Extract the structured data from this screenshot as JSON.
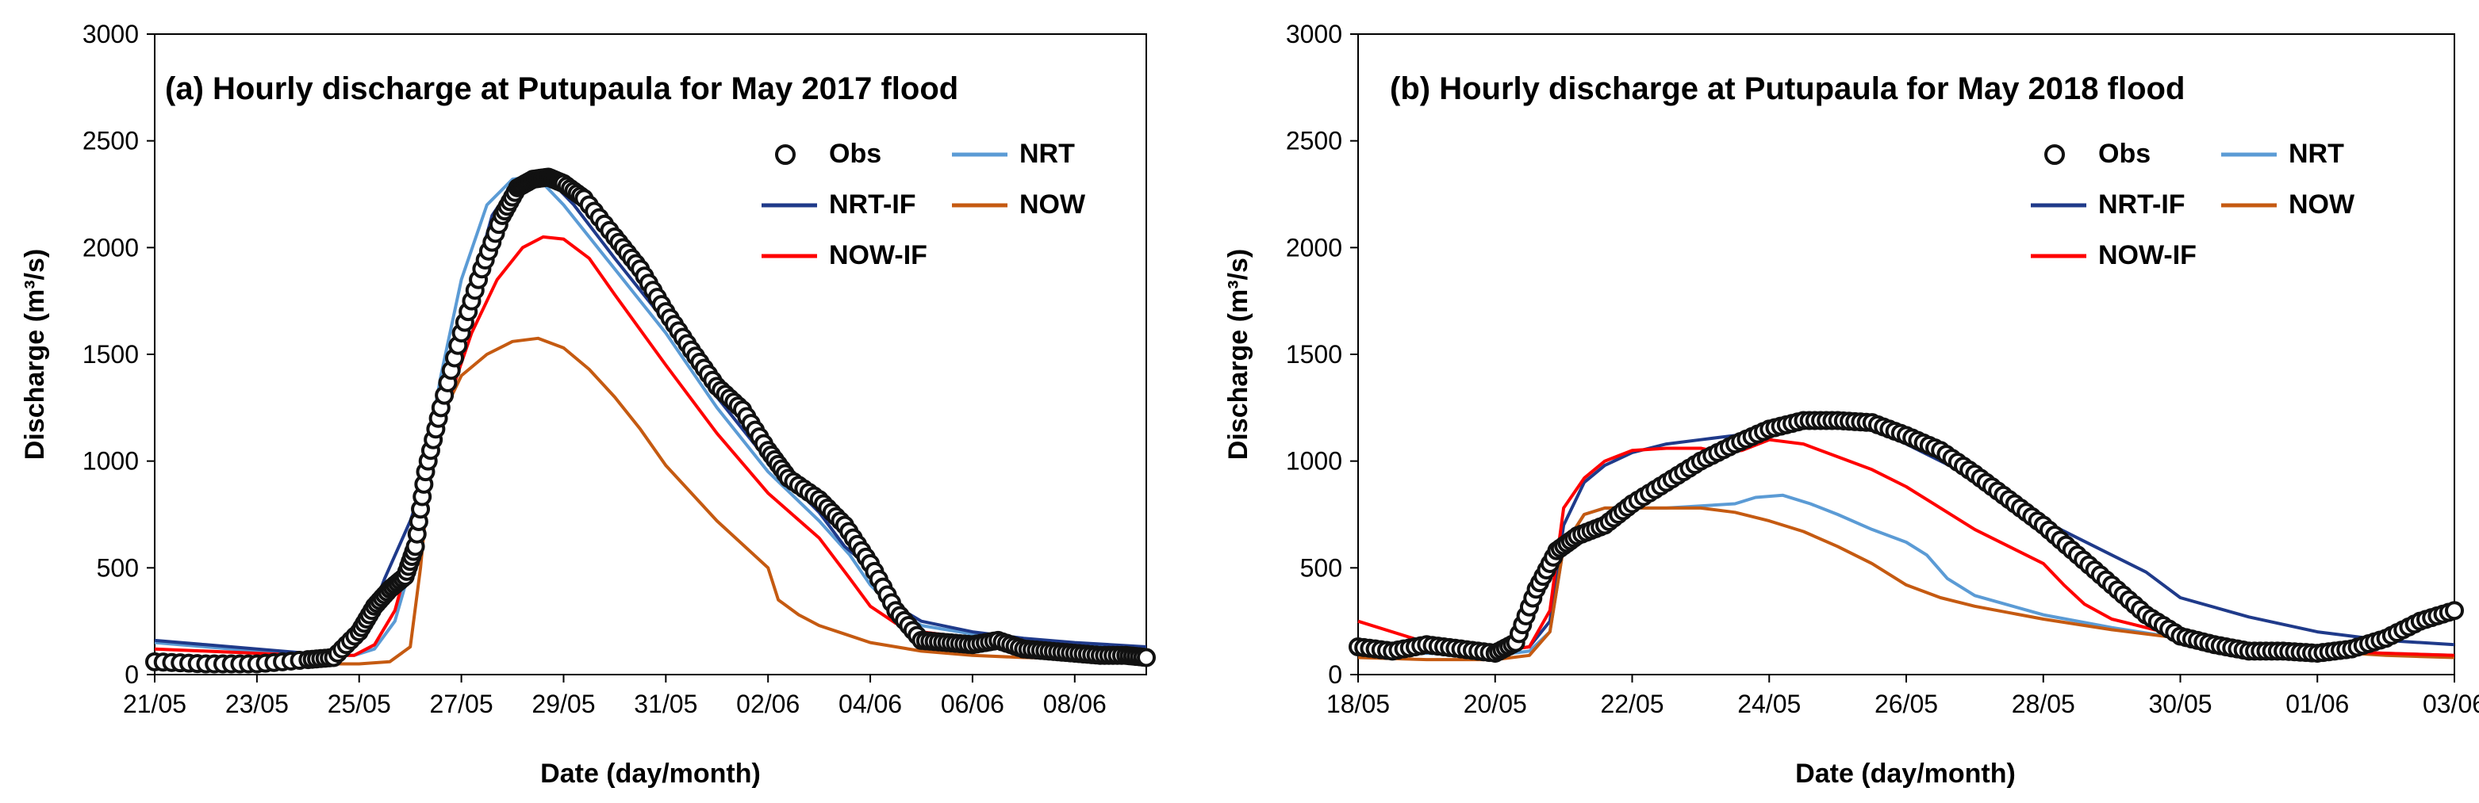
{
  "chart_data": [
    {
      "type": "line",
      "title": "(a) Hourly discharge at Putupaula for May 2017 flood",
      "xlabel": "Date (day/month)",
      "ylabel": "Discharge (m³/s)",
      "ylim": [
        0,
        3000
      ],
      "yticks": [
        "0",
        "500",
        "1000",
        "1500",
        "2000",
        "2500",
        "3000"
      ],
      "xlim": [
        0,
        19.4
      ],
      "xticks": [
        {
          "x": 0,
          "label": "21/05"
        },
        {
          "x": 2,
          "label": "23/05"
        },
        {
          "x": 4,
          "label": "25/05"
        },
        {
          "x": 6,
          "label": "27/05"
        },
        {
          "x": 8,
          "label": "29/05"
        },
        {
          "x": 10,
          "label": "31/05"
        },
        {
          "x": 12,
          "label": "02/06"
        },
        {
          "x": 14,
          "label": "04/06"
        },
        {
          "x": 16,
          "label": "06/06"
        },
        {
          "x": 18,
          "label": "08/06"
        }
      ],
      "legend": {
        "placement": "top-right",
        "entries": [
          {
            "name": "Obs",
            "kind": "marker"
          },
          {
            "name": "NRT",
            "color": "#5b9bd5"
          },
          {
            "name": "NRT-IF",
            "color": "#1f3a8a"
          },
          {
            "name": "NOW",
            "color": "#c55a11"
          },
          {
            "name": "NOW-IF",
            "color": "#ff0000"
          }
        ]
      },
      "series": [
        {
          "name": "NRT",
          "color": "#5b9bd5",
          "x": [
            0,
            1,
            2,
            3,
            3.9,
            4.3,
            4.7,
            5.0,
            5.3,
            5.6,
            6.0,
            6.5,
            7.0,
            7.3,
            7.6,
            8.0,
            8.5,
            9,
            10,
            11,
            12,
            13,
            13.6,
            14,
            14.5,
            15,
            16,
            17,
            18,
            19.4
          ],
          "y": [
            150,
            130,
            110,
            90,
            90,
            120,
            250,
            500,
            1000,
            1400,
            1850,
            2200,
            2320,
            2330,
            2300,
            2200,
            2050,
            1900,
            1600,
            1250,
            950,
            720,
            560,
            420,
            300,
            230,
            190,
            160,
            140,
            120
          ]
        },
        {
          "name": "NRT-IF",
          "color": "#1f3a8a",
          "x": [
            0,
            1,
            2,
            3,
            3.8,
            4.1,
            4.5,
            5.0,
            5.4,
            5.8,
            6.2,
            6.6,
            7.0,
            7.4,
            7.8,
            8.2,
            9,
            10,
            11,
            12,
            13,
            13.5,
            14,
            14.5,
            15,
            16,
            17,
            18,
            19.4
          ],
          "y": [
            160,
            140,
            120,
            100,
            110,
            200,
            450,
            720,
            1000,
            1400,
            1800,
            2150,
            2290,
            2320,
            2300,
            2200,
            1950,
            1650,
            1300,
            1000,
            760,
            600,
            500,
            320,
            250,
            200,
            170,
            150,
            130
          ]
        },
        {
          "name": "NOW",
          "color": "#c55a11",
          "x": [
            0,
            1,
            2,
            3,
            4,
            4.6,
            5.0,
            5.2,
            5.4,
            5.6,
            5.8,
            6.0,
            6.5,
            7.0,
            7.5,
            8.0,
            8.5,
            9,
            9.5,
            10,
            11,
            12,
            12.2,
            12.6,
            13,
            13.5,
            14,
            15,
            16,
            17,
            18,
            19.4
          ],
          "y": [
            80,
            70,
            60,
            50,
            50,
            60,
            130,
            500,
            1000,
            1200,
            1300,
            1400,
            1500,
            1560,
            1575,
            1530,
            1430,
            1300,
            1150,
            980,
            720,
            500,
            350,
            280,
            230,
            190,
            150,
            110,
            90,
            80,
            75,
            70
          ]
        },
        {
          "name": "NOW-IF",
          "color": "#ff0000",
          "x": [
            0,
            1,
            2,
            3,
            3.9,
            4.3,
            4.7,
            5.0,
            5.3,
            5.7,
            6.2,
            6.7,
            7.2,
            7.6,
            8.0,
            8.5,
            9,
            10,
            11,
            12,
            13,
            13.6,
            14,
            14.5,
            15,
            16,
            17,
            18,
            19.4
          ],
          "y": [
            120,
            110,
            100,
            90,
            90,
            140,
            300,
            560,
            900,
            1250,
            1600,
            1850,
            2000,
            2050,
            2040,
            1950,
            1780,
            1450,
            1130,
            850,
            640,
            450,
            320,
            240,
            200,
            170,
            150,
            130,
            110
          ]
        },
        {
          "name": "Obs",
          "kind": "scatter",
          "x": [
            0,
            1,
            2,
            3,
            3.5,
            4.0,
            4.3,
            4.6,
            4.9,
            5.1,
            5.3,
            5.6,
            6.0,
            6.4,
            6.8,
            7.1,
            7.4,
            7.7,
            8.0,
            8.4,
            9,
            9.5,
            10,
            10.5,
            11,
            11.5,
            12,
            12.4,
            13,
            13.5,
            14,
            14.5,
            15,
            15.5,
            16,
            16.5,
            17,
            17.5,
            18,
            18.5,
            19,
            19.4
          ],
          "y": [
            60,
            50,
            50,
            70,
            80,
            200,
            320,
            400,
            460,
            600,
            950,
            1250,
            1600,
            1900,
            2150,
            2280,
            2320,
            2330,
            2300,
            2230,
            2050,
            1900,
            1700,
            1520,
            1350,
            1240,
            1050,
            920,
            820,
            700,
            520,
            300,
            160,
            150,
            140,
            160,
            120,
            110,
            100,
            90,
            90,
            80
          ]
        }
      ]
    },
    {
      "type": "line",
      "title": "(b) Hourly discharge at Putupaula for May 2018 flood",
      "xlabel": "Date (day/month)",
      "ylabel": "Discharge (m³/s)",
      "ylim": [
        0,
        3000
      ],
      "yticks": [
        "0",
        "500",
        "1000",
        "1500",
        "2000",
        "2500",
        "3000"
      ],
      "xlim": [
        0,
        16
      ],
      "xticks": [
        {
          "x": 0,
          "label": "18/05"
        },
        {
          "x": 2,
          "label": "20/05"
        },
        {
          "x": 4,
          "label": "22/05"
        },
        {
          "x": 6,
          "label": "24/05"
        },
        {
          "x": 8,
          "label": "26/05"
        },
        {
          "x": 10,
          "label": "28/05"
        },
        {
          "x": 12,
          "label": "30/05"
        },
        {
          "x": 14,
          "label": "01/06"
        },
        {
          "x": 16,
          "label": "03/06"
        }
      ],
      "legend": {
        "placement": "top-right",
        "entries": [
          {
            "name": "Obs",
            "kind": "marker"
          },
          {
            "name": "NRT",
            "color": "#5b9bd5"
          },
          {
            "name": "NRT-IF",
            "color": "#1f3a8a"
          },
          {
            "name": "NOW",
            "color": "#c55a11"
          },
          {
            "name": "NOW-IF",
            "color": "#ff0000"
          }
        ]
      },
      "series": [
        {
          "name": "NRT",
          "color": "#5b9bd5",
          "x": [
            0,
            1,
            2,
            2.5,
            2.8,
            3.0,
            3.3,
            3.6,
            4,
            4.5,
            5,
            5.5,
            5.8,
            6.2,
            6.6,
            7,
            7.5,
            8,
            8.3,
            8.6,
            9,
            10,
            11,
            12,
            13,
            14,
            15,
            16
          ],
          "y": [
            110,
            100,
            90,
            110,
            200,
            600,
            750,
            780,
            780,
            780,
            790,
            800,
            830,
            840,
            800,
            750,
            680,
            620,
            560,
            450,
            370,
            280,
            220,
            170,
            140,
            110,
            100,
            90
          ]
        },
        {
          "name": "NRT-IF",
          "color": "#1f3a8a",
          "x": [
            0,
            1,
            2,
            2.5,
            2.8,
            3.0,
            3.3,
            3.6,
            4,
            4.5,
            5,
            5.5,
            6,
            6.5,
            7,
            7.5,
            8,
            9,
            10,
            11,
            11.5,
            12,
            13,
            14,
            15,
            16
          ],
          "y": [
            150,
            130,
            110,
            130,
            250,
            700,
            900,
            980,
            1040,
            1080,
            1100,
            1120,
            1140,
            1160,
            1170,
            1150,
            1080,
            920,
            720,
            560,
            480,
            360,
            270,
            200,
            160,
            140
          ]
        },
        {
          "name": "NOW",
          "color": "#c55a11",
          "x": [
            0,
            1,
            2,
            2.5,
            2.8,
            3.0,
            3.3,
            3.6,
            4,
            4.5,
            5,
            5.5,
            6,
            6.5,
            7,
            7.5,
            8,
            8.5,
            9,
            10,
            11,
            12,
            13,
            14,
            15,
            16
          ],
          "y": [
            80,
            70,
            70,
            90,
            200,
            600,
            750,
            780,
            780,
            780,
            780,
            760,
            720,
            670,
            600,
            520,
            420,
            360,
            320,
            260,
            210,
            170,
            130,
            110,
            90,
            80
          ]
        },
        {
          "name": "NOW-IF",
          "color": "#ff0000",
          "x": [
            0,
            1,
            2,
            2.5,
            2.8,
            3.0,
            3.3,
            3.6,
            4,
            4.5,
            5,
            5.3,
            5.6,
            6,
            6.5,
            7,
            7.5,
            8,
            8.5,
            9,
            9.5,
            10,
            10.3,
            10.6,
            11,
            12,
            13,
            14,
            15,
            16
          ],
          "y": [
            250,
            150,
            110,
            130,
            300,
            780,
            920,
            1000,
            1050,
            1060,
            1060,
            1040,
            1050,
            1100,
            1080,
            1020,
            960,
            880,
            780,
            680,
            600,
            520,
            420,
            330,
            260,
            180,
            140,
            110,
            100,
            90
          ]
        },
        {
          "name": "Obs",
          "kind": "scatter",
          "x": [
            0,
            0.5,
            1,
            1.5,
            2,
            2.3,
            2.6,
            2.9,
            3.2,
            3.6,
            4,
            4.5,
            5,
            5.5,
            6,
            6.5,
            7,
            7.5,
            8,
            8.5,
            9,
            9.5,
            10,
            10.5,
            11,
            11.5,
            12,
            12.5,
            13,
            13.5,
            14,
            14.5,
            15,
            15.5,
            16
          ],
          "y": [
            130,
            110,
            140,
            120,
            100,
            150,
            400,
            580,
            650,
            700,
            800,
            900,
            1000,
            1080,
            1150,
            1190,
            1190,
            1180,
            1120,
            1050,
            940,
            820,
            700,
            560,
            420,
            280,
            180,
            140,
            110,
            110,
            100,
            120,
            170,
            250,
            300
          ]
        }
      ]
    }
  ]
}
